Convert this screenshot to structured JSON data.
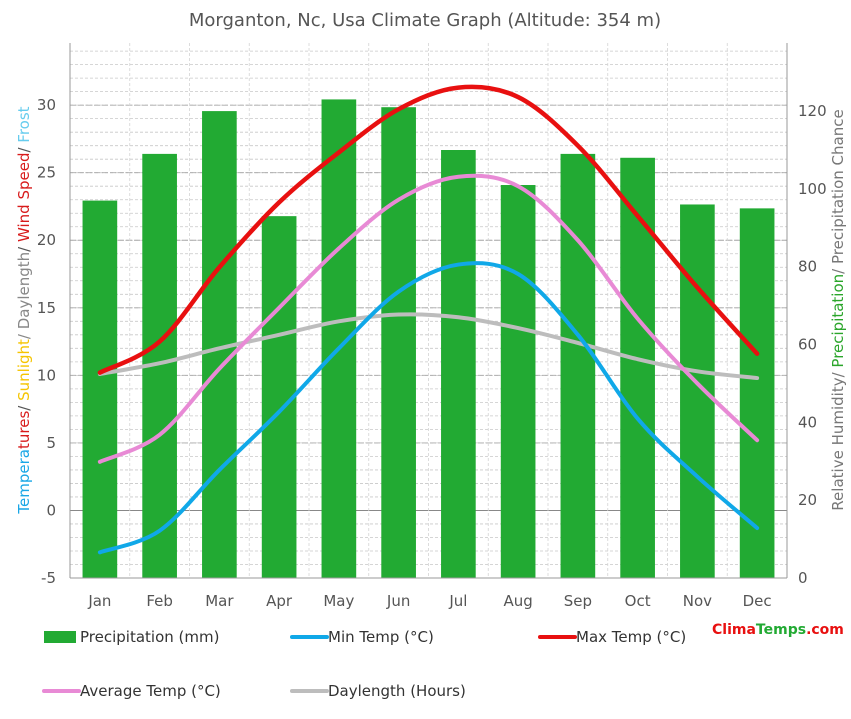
{
  "chart_data": {
    "type": "bar",
    "title": "Morganton, Nc, Usa Climate Graph (Altitude: 354 m)",
    "categories": [
      "Jan",
      "Feb",
      "Mar",
      "Apr",
      "May",
      "Jun",
      "Jul",
      "Aug",
      "Sep",
      "Oct",
      "Nov",
      "Dec"
    ],
    "left_axis": {
      "label_parts": [
        {
          "text": "Tempera",
          "color": "#1aa7e6"
        },
        {
          "text": "tures",
          "color": "#d81b1b"
        },
        {
          "text": "/ ",
          "color": "#555555"
        },
        {
          "text": "Sunlight",
          "color": "#f5c400"
        },
        {
          "text": "/ Daylength",
          "color": "#888888"
        },
        {
          "text": "/ ",
          "color": "#555555"
        },
        {
          "text": "Wind Speed",
          "color": "#d81b1b"
        },
        {
          "text": "/ ",
          "color": "#555555"
        },
        {
          "text": "Frost",
          "color": "#66ccee"
        }
      ],
      "ylim": [
        -5,
        34.6
      ],
      "ticks": [
        -5,
        0,
        5,
        10,
        15,
        20,
        25,
        30
      ]
    },
    "right_axis": {
      "label_parts": [
        {
          "text": "Relative Humidity/ ",
          "color": "#777777"
        },
        {
          "text": "Precipitation",
          "color": "#2aa52a"
        },
        {
          "text": "/ Precipitation Chance",
          "color": "#777777"
        }
      ],
      "ylim": [
        0,
        137.5
      ],
      "ticks": [
        0,
        20,
        40,
        60,
        80,
        100,
        120
      ]
    },
    "bars": {
      "name": "Precipitation (mm)",
      "color": "#22aa33",
      "values": [
        97,
        109,
        120,
        93,
        123,
        121,
        110,
        101,
        109,
        108,
        96,
        95
      ]
    },
    "series": [
      {
        "name": "Min Temp (°C)",
        "color": "#10a8e8",
        "values": [
          -3.1,
          -1.5,
          3.0,
          7.3,
          12.0,
          16.2,
          18.2,
          17.5,
          13.0,
          6.8,
          2.5,
          -1.3
        ]
      },
      {
        "name": "Max Temp (°C)",
        "color": "#e81010",
        "values": [
          10.2,
          12.5,
          18.0,
          22.8,
          26.5,
          29.7,
          31.3,
          30.6,
          27.0,
          21.8,
          16.5,
          11.6
        ]
      },
      {
        "name": "Average Temp (°C)",
        "color": "#e88ad5",
        "values": [
          3.6,
          5.6,
          10.5,
          15.0,
          19.4,
          23.0,
          24.7,
          24.0,
          20.0,
          14.2,
          9.4,
          5.2
        ]
      },
      {
        "name": "Daylength (Hours)",
        "color": "#bdbdbd",
        "values": [
          10.1,
          10.9,
          12.0,
          13.0,
          14.0,
          14.5,
          14.3,
          13.5,
          12.4,
          11.2,
          10.3,
          9.8
        ]
      }
    ],
    "legend_placement": "bottom",
    "grid": true
  },
  "branding": {
    "clima": "Clima",
    "temps": "Temps",
    "com": ".com",
    "colors": {
      "clima": "#e81010",
      "temps": "#22aa33",
      "com": "#e81010"
    }
  }
}
